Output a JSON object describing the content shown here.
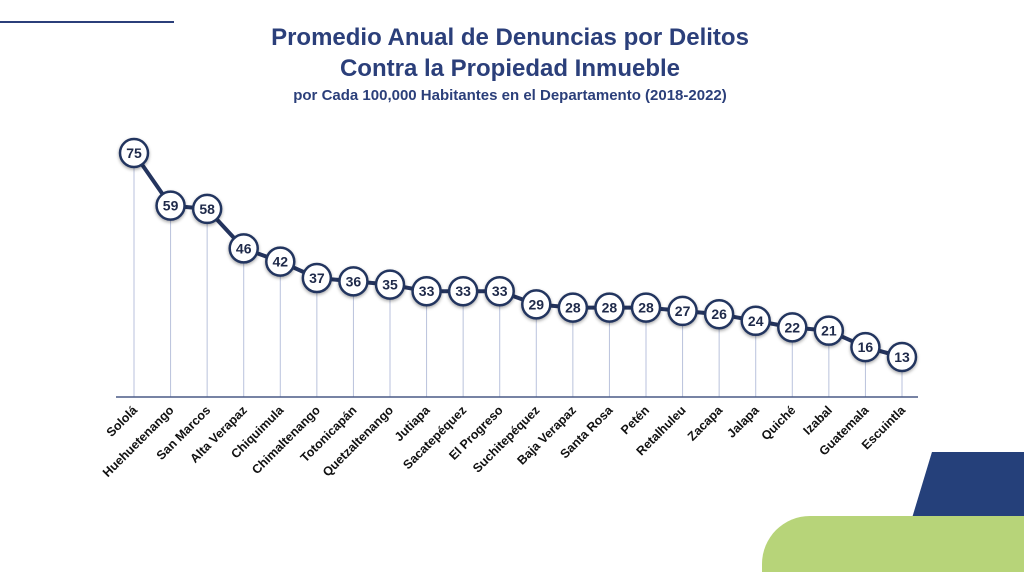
{
  "header": {
    "title_line1": "Promedio Anual de Denuncias por Delitos",
    "title_line2": "Contra la Propiedad Inmueble",
    "subtitle": "por Cada 100,000 Habitantes en el Departamento (2018-2022)"
  },
  "colors": {
    "navy": "#2b3f7a",
    "line": "#24345e",
    "drop_line": "#b9c2dc",
    "accent_navy": "#25407a",
    "accent_green": "#b7d479"
  },
  "chart_data": {
    "type": "line",
    "title": "Promedio Anual de Denuncias por Delitos Contra la Propiedad Inmueble",
    "subtitle": "por Cada 100,000 Habitantes en el Departamento (2018-2022)",
    "categories": [
      "Sololá",
      "Huehuetenango",
      "San Marcos",
      "Alta Verapaz",
      "Chiquimula",
      "Chimaltenango",
      "Totonicapán",
      "Quetzaltenango",
      "Jutiapa",
      "Sacatepéquez",
      "El Progreso",
      "Suchitepéquez",
      "Baja Verapaz",
      "Santa Rosa",
      "Petén",
      "Retalhuleu",
      "Zacapa",
      "Jalapa",
      "Quiché",
      "Izabal",
      "Guatemala",
      "Escuintla"
    ],
    "series": [
      {
        "values": [
          75,
          59,
          58,
          46,
          42,
          37,
          36,
          35,
          33,
          33,
          33,
          29,
          28,
          28,
          28,
          27,
          26,
          24,
          22,
          21,
          16,
          13
        ]
      }
    ],
    "data_labels": [
      "75",
      "59",
      "58",
      "46",
      "42",
      "37",
      "36",
      "35",
      "33",
      "33",
      "33",
      "29",
      "28",
      "28",
      "28",
      "27",
      "26",
      "24",
      "22",
      "21",
      "16",
      "13"
    ],
    "ylim": [
      0,
      75
    ],
    "grid": false,
    "legend": "none"
  }
}
